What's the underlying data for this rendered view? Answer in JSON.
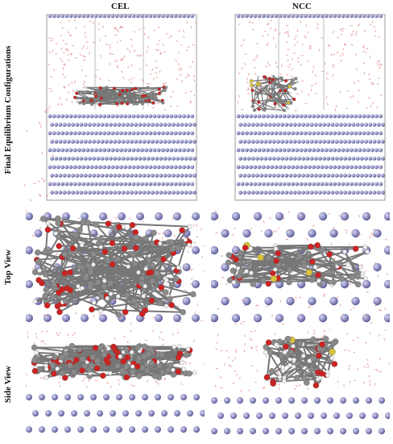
{
  "columns": [
    {
      "title": "CEL"
    },
    {
      "title": "NCC"
    }
  ],
  "rows": [
    {
      "label": "Final Equilibrium Configurations"
    },
    {
      "label": "Top View"
    },
    {
      "label": "Side View"
    }
  ],
  "colors": {
    "substrate_atom": "#8f8fc4",
    "substrate_atom_dark": "#5d5d96",
    "carbon": "#8a8a8a",
    "oxygen": "#cc2222",
    "hydrogen": "#f2f2f2",
    "sulfur": "#d8c23a",
    "water": "#e08080",
    "box_line": "#555555"
  }
}
